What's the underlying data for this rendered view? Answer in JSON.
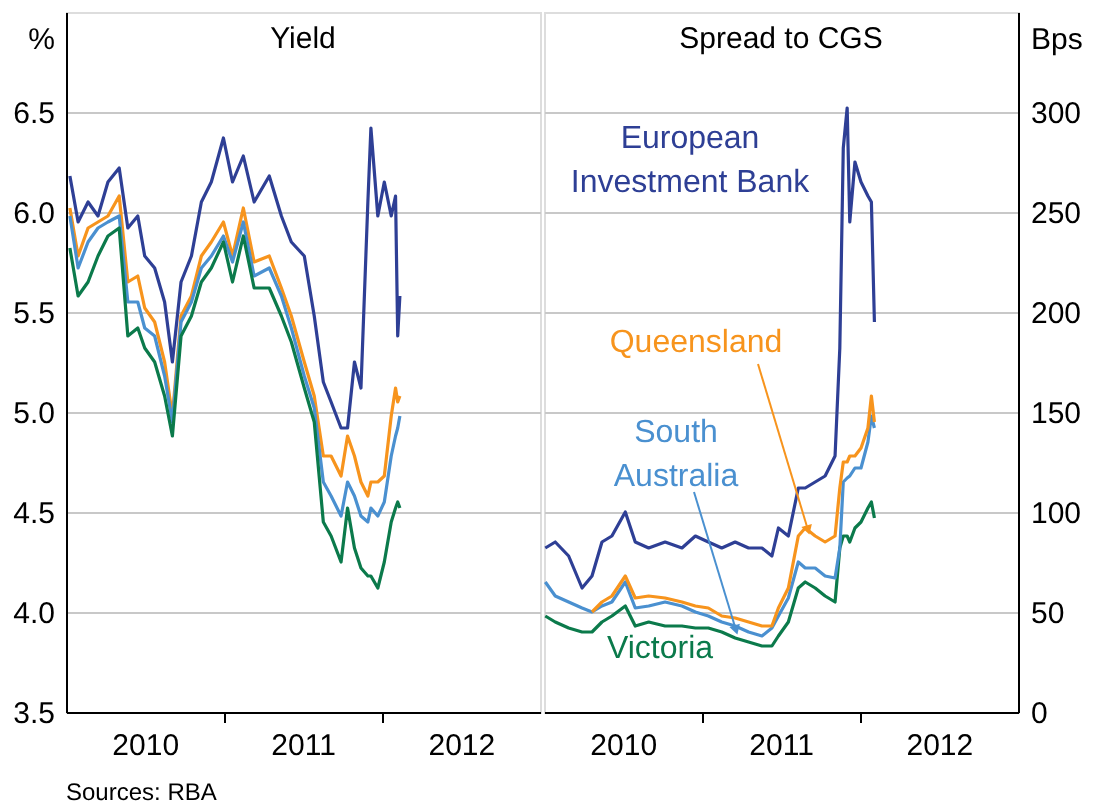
{
  "chart_data": [
    {
      "type": "line",
      "title": "Yield",
      "ylabel": "%",
      "grid": "y",
      "line_style": "solid",
      "xlim": [
        "2010-01-01",
        "2013-01-01"
      ],
      "xticks": [
        {
          "value": "2010-07-02",
          "label": "2010"
        },
        {
          "value": "2011-01-01",
          "label": null
        },
        {
          "value": "2011-07-02",
          "label": "2011"
        },
        {
          "value": "2012-01-01",
          "label": null
        },
        {
          "value": "2012-07-02",
          "label": "2012"
        }
      ],
      "ylim": [
        3.5,
        7.0
      ],
      "yticks": [
        3.5,
        {
          "value": 4,
          "label": "4.0"
        },
        4.5,
        {
          "value": 5,
          "label": "5.0"
        },
        5.5,
        {
          "value": 6,
          "label": "6.0"
        },
        6.5
      ],
      "annotations": [
        "Sources: RBA"
      ],
      "x": [
        "2010-01-10",
        "2010-01-29",
        "2010-02-21",
        "2010-03-16",
        "2010-04-08",
        "2010-05-04",
        "2010-05-24",
        "2010-06-16",
        "2010-07-02",
        "2010-07-25",
        "2010-08-17",
        "2010-09-04",
        "2010-09-24",
        "2010-10-18",
        "2010-11-10",
        "2010-12-03",
        "2010-12-31",
        "2011-01-21",
        "2011-02-15",
        "2011-03-12",
        "2011-04-16",
        "2011-05-14",
        "2011-06-06",
        "2011-07-06",
        "2011-07-29",
        "2011-08-19",
        "2011-09-06",
        "2011-09-29",
        "2011-10-14",
        "2011-10-30",
        "2011-11-14",
        "2011-11-30",
        "2011-12-07",
        "2011-12-23",
        "2012-01-07",
        "2012-01-23",
        "2012-02-02",
        "2012-02-07",
        "2012-02-12"
      ],
      "series": [
        {
          "color": "#f7941d",
          "values": [
            6.02,
            5.78,
            5.92,
            5.95,
            5.98,
            6.08,
            5.65,
            5.68,
            5.52,
            5.45,
            5.25,
            4.98,
            5.48,
            5.58,
            5.78,
            5.85,
            5.95,
            5.78,
            6.02,
            5.75,
            5.78,
            5.62,
            5.48,
            5.25,
            5.08,
            4.78,
            4.78,
            4.68,
            4.88,
            4.78,
            4.65,
            4.58,
            4.65,
            4.65,
            4.68,
            4.98,
            5.12,
            5.05,
            5.08
          ]
        },
        {
          "color": "#4a90d0",
          "values": [
            5.98,
            5.72,
            5.85,
            5.92,
            5.95,
            5.98,
            5.55,
            5.55,
            5.42,
            5.38,
            5.18,
            4.95,
            5.45,
            5.55,
            5.72,
            5.78,
            5.88,
            5.75,
            5.95,
            5.68,
            5.72,
            5.58,
            5.42,
            5.18,
            5.02,
            4.65,
            4.58,
            4.48,
            4.65,
            4.58,
            4.48,
            4.45,
            4.52,
            4.48,
            4.55,
            4.78,
            4.88,
            4.92,
            4.98
          ]
        },
        {
          "color": "#0b7a4b",
          "values": [
            5.82,
            5.58,
            5.65,
            5.78,
            5.88,
            5.92,
            5.38,
            5.42,
            5.32,
            5.25,
            5.08,
            4.88,
            5.38,
            5.48,
            5.65,
            5.72,
            5.85,
            5.65,
            5.88,
            5.62,
            5.62,
            5.48,
            5.35,
            5.12,
            4.95,
            4.45,
            4.38,
            4.25,
            4.52,
            4.32,
            4.22,
            4.18,
            4.18,
            4.12,
            4.25,
            4.45,
            4.52,
            4.55,
            4.52
          ]
        },
        {
          "color": "#2e3f95",
          "values": [
            6.18,
            5.95,
            6.05,
            5.98,
            6.15,
            6.22,
            5.92,
            5.98,
            5.78,
            5.72,
            5.55,
            5.25,
            5.65,
            5.78,
            6.05,
            6.15,
            6.37,
            6.15,
            6.28,
            6.05,
            6.18,
            5.98,
            5.85,
            5.78,
            5.48,
            5.15,
            5.05,
            4.92,
            4.92,
            5.25,
            5.12,
            6.05,
            6.42,
            5.98,
            6.15,
            5.98,
            6.08,
            5.38,
            5.58
          ]
        }
      ]
    },
    {
      "type": "line",
      "title": "Spread to CGS",
      "y2label": "Bps",
      "grid": "y",
      "line_style": "solid",
      "xlim": [
        "2010-01-01",
        "2013-01-01"
      ],
      "xticks": [
        {
          "value": "2010-07-02",
          "label": "2010"
        },
        {
          "value": "2011-01-01",
          "label": null
        },
        {
          "value": "2011-07-02",
          "label": "2011"
        },
        {
          "value": "2012-01-01",
          "label": null
        },
        {
          "value": "2012-07-02",
          "label": "2012"
        }
      ],
      "y2lim": [
        0,
        350
      ],
      "y2ticks": [
        0,
        50,
        100,
        150,
        200,
        250,
        300
      ],
      "x": [
        "2010-01-04",
        "2010-01-27",
        "2010-02-27",
        "2010-03-30",
        "2010-04-22",
        "2010-05-15",
        "2010-06-07",
        "2010-07-08",
        "2010-07-31",
        "2010-08-31",
        "2010-10-08",
        "2010-11-16",
        "2010-12-17",
        "2011-01-16",
        "2011-02-16",
        "2011-03-19",
        "2011-04-19",
        "2011-05-20",
        "2011-06-12",
        "2011-06-27",
        "2011-07-20",
        "2011-08-12",
        "2011-08-28",
        "2011-09-20",
        "2011-10-13",
        "2011-11-05",
        "2011-11-16",
        "2011-11-24",
        "2011-12-03",
        "2011-12-09",
        "2011-12-21",
        "2012-01-04",
        "2012-01-20",
        "2012-01-28",
        "2012-02-04"
      ],
      "series": [
        {
          "name": "Victoria",
          "axis": "y2",
          "color": "#0b7a4b",
          "values": [
            48,
            45,
            42,
            40,
            40,
            45,
            48,
            53,
            43,
            45,
            43,
            43,
            42,
            42,
            40,
            37,
            35,
            33,
            33,
            38,
            45,
            62,
            65,
            62,
            58,
            55,
            82,
            88,
            88,
            85,
            92,
            95,
            102,
            105,
            97
          ]
        },
        {
          "name": "South Australia",
          "axis": "y2",
          "color": "#4a90d0",
          "values": [
            65,
            58,
            55,
            52,
            50,
            53,
            55,
            65,
            52,
            53,
            55,
            53,
            50,
            48,
            45,
            43,
            40,
            38,
            42,
            48,
            57,
            75,
            72,
            72,
            68,
            67,
            82,
            115,
            117,
            118,
            122,
            122,
            135,
            148,
            142
          ]
        },
        {
          "name": "Queensland",
          "axis": "y2",
          "color": "#f7941d",
          "values": [
            null,
            null,
            null,
            null,
            50,
            55,
            58,
            68,
            57,
            58,
            57,
            55,
            53,
            52,
            48,
            47,
            45,
            43,
            43,
            52,
            62,
            88,
            92,
            88,
            85,
            88,
            112,
            125,
            125,
            128,
            128,
            132,
            142,
            158,
            145
          ]
        },
        {
          "name": "European Investment Bank",
          "axis": "y2",
          "color": "#2e3f95",
          "values": [
            82,
            85,
            78,
            62,
            68,
            85,
            88,
            100,
            85,
            82,
            85,
            82,
            88,
            85,
            82,
            85,
            82,
            82,
            78,
            92,
            88,
            112,
            112,
            115,
            118,
            128,
            182,
            282,
            302,
            245,
            275,
            265,
            258,
            255,
            195
          ]
        }
      ]
    }
  ]
}
